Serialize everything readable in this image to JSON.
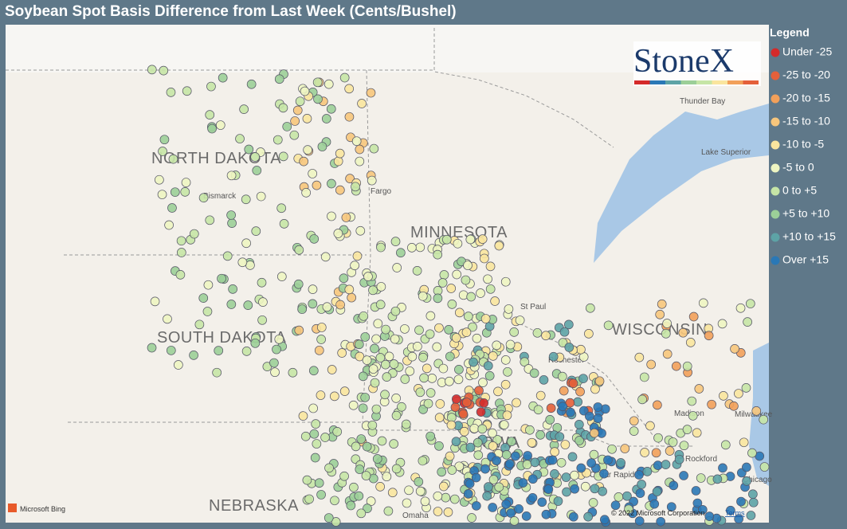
{
  "title": "Soybean Spot Basis Difference from Last Week (Cents/Bushel)",
  "logo": "StoneX",
  "legend": {
    "title": "Legend",
    "items": [
      {
        "label": "Under -25",
        "color": "#d42a2a"
      },
      {
        "label": "-25 to -20",
        "color": "#e4603a"
      },
      {
        "label": "-20 to -15",
        "color": "#f2a05a"
      },
      {
        "label": "-15 to -10",
        "color": "#f7c67c"
      },
      {
        "label": "-10 to -5",
        "color": "#fae59e"
      },
      {
        "label": "-5 to 0",
        "color": "#eef5c2"
      },
      {
        "label": "0 to +5",
        "color": "#c6e5a6"
      },
      {
        "label": "+5 to +10",
        "color": "#9ccf98"
      },
      {
        "label": "+10 to +15",
        "color": "#5da3a6"
      },
      {
        "label": "Over +15",
        "color": "#2a78b6"
      }
    ]
  },
  "map": {
    "states": [
      "NORTH DAKOTA",
      "MINNESOTA",
      "SOUTH DAKOTA",
      "WISCONSIN",
      "NEBRASKA",
      "IOWA"
    ],
    "cities": [
      "Bismarck",
      "Fargo",
      "St Paul",
      "Rochester",
      "Madison",
      "Milwaukee",
      "Thunder Bay",
      "Lake Superior",
      "Rockford",
      "Chicago",
      "Cedar Rapids",
      "Omaha"
    ]
  },
  "attribution": {
    "provider": "Microsoft Bing",
    "copyright": "© 2022 Microsoft Corporation",
    "terms": "Terms"
  }
}
